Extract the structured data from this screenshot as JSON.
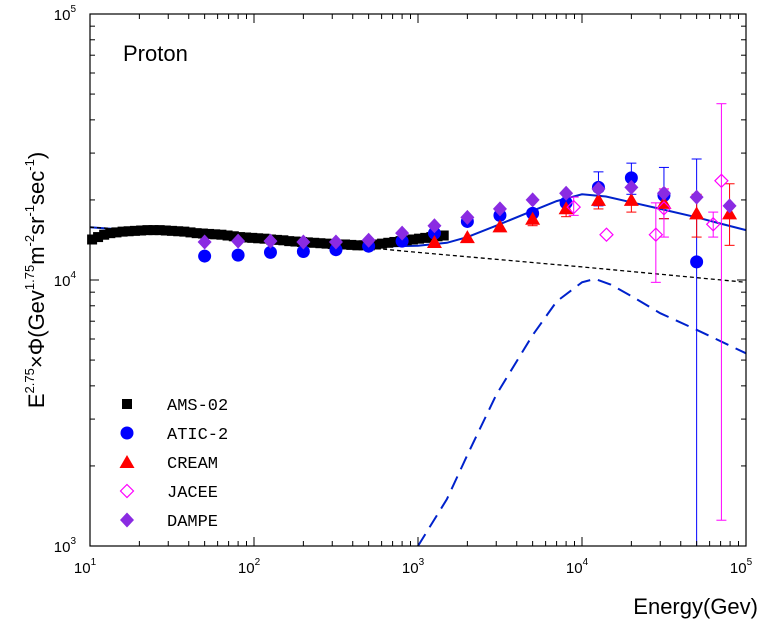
{
  "chart_data": {
    "type": "scatter",
    "annotation": "Proton",
    "xlabel": "Energy(Gev)",
    "ylabel": {
      "base": "E",
      "exp1": "2.75",
      "mid": "×Φ(Gev",
      "exp2": "1.75",
      "unit_m": "m",
      "exp3": "-2",
      "unit_sr": "sr",
      "exp4": "-1",
      "unit_sec": "sec",
      "exp5": "-1",
      "close": ")"
    },
    "xscale": "log",
    "yscale": "log",
    "xlim": [
      10,
      100000
    ],
    "ylim": [
      1000,
      100000
    ],
    "x_ticks": [
      {
        "base": "10",
        "exp": "1"
      },
      {
        "base": "10",
        "exp": "2"
      },
      {
        "base": "10",
        "exp": "3"
      },
      {
        "base": "10",
        "exp": "4"
      },
      {
        "base": "10",
        "exp": "5"
      }
    ],
    "y_ticks": [
      {
        "base": "10",
        "exp": "3"
      },
      {
        "base": "10",
        "exp": "4"
      },
      {
        "base": "10",
        "exp": "5"
      }
    ],
    "grid": false,
    "legend_position": "lower-left",
    "series": [
      {
        "name": "AMS-02",
        "marker": "square",
        "color": "#000000",
        "points": [
          {
            "x": 10.3,
            "y": 14200
          },
          {
            "x": 11.2,
            "y": 14500
          },
          {
            "x": 12.2,
            "y": 14800
          },
          {
            "x": 13.3,
            "y": 15000
          },
          {
            "x": 14.5,
            "y": 15100
          },
          {
            "x": 15.8,
            "y": 15200
          },
          {
            "x": 17.2,
            "y": 15250
          },
          {
            "x": 18.8,
            "y": 15300
          },
          {
            "x": 20.5,
            "y": 15350
          },
          {
            "x": 22.4,
            "y": 15400
          },
          {
            "x": 24.4,
            "y": 15400
          },
          {
            "x": 26.6,
            "y": 15400
          },
          {
            "x": 29.0,
            "y": 15350
          },
          {
            "x": 31.6,
            "y": 15300
          },
          {
            "x": 34.5,
            "y": 15250
          },
          {
            "x": 37.6,
            "y": 15200
          },
          {
            "x": 41.0,
            "y": 15100
          },
          {
            "x": 44.7,
            "y": 15000
          },
          {
            "x": 48.8,
            "y": 14950
          },
          {
            "x": 53.2,
            "y": 14900
          },
          {
            "x": 58.0,
            "y": 14850
          },
          {
            "x": 63.3,
            "y": 14800
          },
          {
            "x": 69.0,
            "y": 14700
          },
          {
            "x": 75.3,
            "y": 14600
          },
          {
            "x": 82.1,
            "y": 14500
          },
          {
            "x": 89.5,
            "y": 14450
          },
          {
            "x": 97.6,
            "y": 14400
          },
          {
            "x": 106,
            "y": 14350
          },
          {
            "x": 116,
            "y": 14300
          },
          {
            "x": 127,
            "y": 14200
          },
          {
            "x": 138,
            "y": 14150
          },
          {
            "x": 151,
            "y": 14100
          },
          {
            "x": 164,
            "y": 14000
          },
          {
            "x": 179,
            "y": 13950
          },
          {
            "x": 196,
            "y": 13900
          },
          {
            "x": 213,
            "y": 13850
          },
          {
            "x": 233,
            "y": 13800
          },
          {
            "x": 254,
            "y": 13750
          },
          {
            "x": 277,
            "y": 13700
          },
          {
            "x": 302,
            "y": 13650
          },
          {
            "x": 329,
            "y": 13600
          },
          {
            "x": 359,
            "y": 13600
          },
          {
            "x": 392,
            "y": 13550
          },
          {
            "x": 427,
            "y": 13500
          },
          {
            "x": 466,
            "y": 13500
          },
          {
            "x": 508,
            "y": 13500
          },
          {
            "x": 554,
            "y": 13600
          },
          {
            "x": 604,
            "y": 13700
          },
          {
            "x": 659,
            "y": 13800
          },
          {
            "x": 718,
            "y": 13900
          },
          {
            "x": 783,
            "y": 14000
          },
          {
            "x": 854,
            "y": 14100
          },
          {
            "x": 931,
            "y": 14200
          },
          {
            "x": 1015,
            "y": 14300
          },
          {
            "x": 1107,
            "y": 14400
          },
          {
            "x": 1207,
            "y": 14500
          },
          {
            "x": 1316,
            "y": 14600
          },
          {
            "x": 1435,
            "y": 14700
          }
        ]
      },
      {
        "name": "ATIC-2",
        "marker": "circle",
        "color": "#0000ff",
        "points": [
          {
            "x": 50,
            "y": 12300
          },
          {
            "x": 80,
            "y": 12400
          },
          {
            "x": 126,
            "y": 12700
          },
          {
            "x": 200,
            "y": 12800
          },
          {
            "x": 316,
            "y": 13000
          },
          {
            "x": 500,
            "y": 13400
          },
          {
            "x": 800,
            "y": 14000
          },
          {
            "x": 1260,
            "y": 15000
          },
          {
            "x": 2000,
            "y": 16600
          },
          {
            "x": 3160,
            "y": 17500
          },
          {
            "x": 5000,
            "y": 17800
          },
          {
            "x": 8000,
            "y": 19500
          },
          {
            "x": 12600,
            "y": 22300,
            "err": [
              19000,
              25500
            ]
          },
          {
            "x": 20000,
            "y": 24200,
            "err": [
              21000,
              27500
            ]
          },
          {
            "x": 31600,
            "y": 20800,
            "err": [
              17000,
              26500
            ]
          },
          {
            "x": 50000,
            "y": 11700,
            "err": [
              1000,
              28500
            ]
          }
        ]
      },
      {
        "name": "CREAM",
        "marker": "triangle",
        "color": "#ff0000",
        "points": [
          {
            "x": 1260,
            "y": 13900
          },
          {
            "x": 2000,
            "y": 14500
          },
          {
            "x": 3160,
            "y": 15900
          },
          {
            "x": 5000,
            "y": 17000,
            "err": [
              16000,
              18000
            ]
          },
          {
            "x": 8000,
            "y": 18600,
            "err": [
              17300,
              20000
            ]
          },
          {
            "x": 12600,
            "y": 20000,
            "err": [
              18500,
              21500
            ]
          },
          {
            "x": 20000,
            "y": 20000,
            "err": [
              18000,
              22000
            ]
          },
          {
            "x": 31600,
            "y": 19500,
            "err": [
              17000,
              22000
            ]
          },
          {
            "x": 50000,
            "y": 17800,
            "err": [
              14500,
              21000
            ]
          },
          {
            "x": 79400,
            "y": 17800,
            "err": [
              13500,
              23000
            ]
          }
        ]
      },
      {
        "name": "JACEE",
        "marker": "diamond-open",
        "color": "#ff00ff",
        "points": [
          {
            "x": 8900,
            "y": 18800,
            "err": [
              17500,
              20500
            ]
          },
          {
            "x": 14100,
            "y": 14800
          },
          {
            "x": 28200,
            "y": 14800,
            "err": [
              9800,
              19500
            ]
          },
          {
            "x": 31600,
            "y": 18600,
            "err": [
              14500,
              22000
            ]
          },
          {
            "x": 63100,
            "y": 16200,
            "err": [
              14500,
              18000
            ]
          },
          {
            "x": 70800,
            "y": 23600,
            "err": [
              1250,
              46000
            ]
          }
        ]
      },
      {
        "name": "DAMPE",
        "marker": "diamond",
        "color": "#8a2be2",
        "points": [
          {
            "x": 50,
            "y": 13900
          },
          {
            "x": 80,
            "y": 14000
          },
          {
            "x": 126,
            "y": 14000
          },
          {
            "x": 200,
            "y": 13900
          },
          {
            "x": 316,
            "y": 13900
          },
          {
            "x": 500,
            "y": 14100
          },
          {
            "x": 800,
            "y": 15000
          },
          {
            "x": 1260,
            "y": 16000
          },
          {
            "x": 2000,
            "y": 17200
          },
          {
            "x": 3160,
            "y": 18500
          },
          {
            "x": 5000,
            "y": 20000
          },
          {
            "x": 8000,
            "y": 21200
          },
          {
            "x": 12600,
            "y": 22000
          },
          {
            "x": 20000,
            "y": 22300
          },
          {
            "x": 31600,
            "y": 21200
          },
          {
            "x": 50000,
            "y": 20500
          },
          {
            "x": 79400,
            "y": 19000
          }
        ]
      }
    ],
    "curves": [
      {
        "style": "solid",
        "color": "#0022cc",
        "points": [
          {
            "x": 10,
            "y": 15800
          },
          {
            "x": 20,
            "y": 15300
          },
          {
            "x": 50,
            "y": 14700
          },
          {
            "x": 100,
            "y": 14200
          },
          {
            "x": 200,
            "y": 13800
          },
          {
            "x": 400,
            "y": 13500
          },
          {
            "x": 700,
            "y": 13400
          },
          {
            "x": 1000,
            "y": 13450
          },
          {
            "x": 1500,
            "y": 13800
          },
          {
            "x": 2000,
            "y": 14500
          },
          {
            "x": 3000,
            "y": 16000
          },
          {
            "x": 5000,
            "y": 18200
          },
          {
            "x": 7000,
            "y": 19800
          },
          {
            "x": 10000,
            "y": 21000
          },
          {
            "x": 14000,
            "y": 20600
          },
          {
            "x": 20000,
            "y": 19600
          },
          {
            "x": 30000,
            "y": 18500
          },
          {
            "x": 50000,
            "y": 17200
          },
          {
            "x": 70000,
            "y": 16300
          },
          {
            "x": 100000,
            "y": 15400
          }
        ]
      },
      {
        "style": "dotted",
        "color": "#000000",
        "points": [
          {
            "x": 10,
            "y": 15800
          },
          {
            "x": 100,
            "y": 14500
          },
          {
            "x": 1000,
            "y": 12700
          },
          {
            "x": 10000,
            "y": 11200
          },
          {
            "x": 100000,
            "y": 9800
          }
        ]
      },
      {
        "style": "dashed",
        "color": "#0022cc",
        "points": [
          {
            "x": 1000,
            "y": 1000
          },
          {
            "x": 1500,
            "y": 1500
          },
          {
            "x": 2000,
            "y": 2200
          },
          {
            "x": 3000,
            "y": 3700
          },
          {
            "x": 5000,
            "y": 6200
          },
          {
            "x": 7000,
            "y": 8300
          },
          {
            "x": 10000,
            "y": 9800
          },
          {
            "x": 12000,
            "y": 10100
          },
          {
            "x": 15000,
            "y": 9600
          },
          {
            "x": 20000,
            "y": 8700
          },
          {
            "x": 30000,
            "y": 7500
          },
          {
            "x": 50000,
            "y": 6500
          },
          {
            "x": 100000,
            "y": 5300
          }
        ]
      }
    ]
  }
}
